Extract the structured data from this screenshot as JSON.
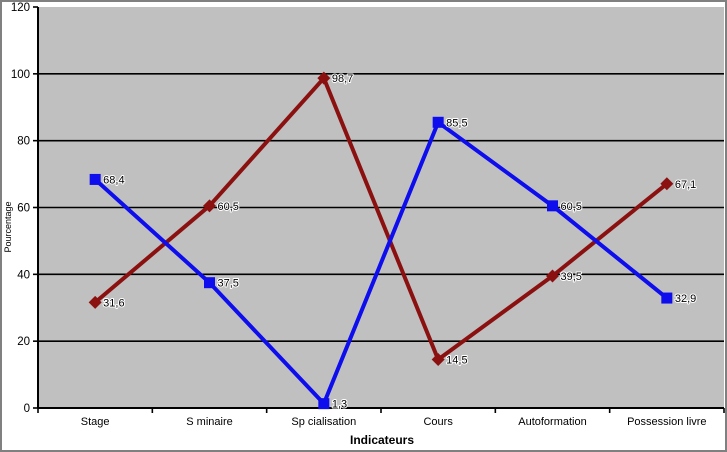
{
  "chart_data": {
    "type": "line",
    "title": "",
    "xlabel": "Indicateurs",
    "ylabel": "Pourcentage",
    "ylim": [
      0,
      120
    ],
    "ytick_step": 20,
    "yticks": [
      "0",
      "20",
      "40",
      "60",
      "80",
      "100",
      "120"
    ],
    "grid": true,
    "legend_position": "none",
    "categories": [
      "Stage",
      "S minaire",
      "Sp cialisation",
      "Cours",
      "Autoformation",
      "Possession livre"
    ],
    "series": [
      {
        "name": "dark-red-series",
        "color": "#8B1111",
        "marker": "diamond",
        "values": [
          31.6,
          60.5,
          98.7,
          14.5,
          39.5,
          67.1
        ],
        "labels": [
          "31,6",
          "60,5",
          "98,7",
          "14,5",
          "39,5",
          "67,1"
        ]
      },
      {
        "name": "blue-series",
        "color": "#0D0DEE",
        "marker": "square",
        "values": [
          68.4,
          37.5,
          1.3,
          85.5,
          60.5,
          32.9
        ],
        "labels": [
          "68,4",
          "37,5",
          "1,3",
          "85,5",
          "60,5",
          "32,9"
        ]
      }
    ],
    "colors": {
      "plot_background": "#C0C0C0",
      "gridline": "#000000",
      "axis": "#000000",
      "outer_frame": "#808080",
      "outer_background": "#FFFFFF",
      "label_text": "#000000"
    }
  }
}
